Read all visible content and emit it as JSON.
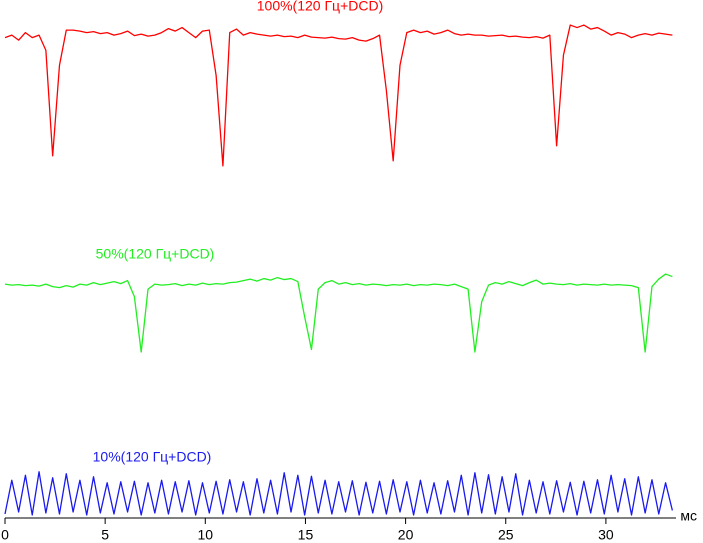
{
  "chart_data": {
    "type": "line",
    "x_label": "мс",
    "xlim": [
      0,
      33.5
    ],
    "xticks": [
      0,
      5,
      10,
      15,
      20,
      25,
      30
    ],
    "ylim": [
      0,
      100
    ],
    "x": [
      0,
      0.34,
      0.68,
      1.02,
      1.36,
      1.7,
      2.04,
      2.38,
      2.72,
      3.06,
      3.4,
      3.74,
      4.08,
      4.42,
      4.76,
      5.1,
      5.44,
      5.78,
      6.12,
      6.46,
      6.8,
      7.14,
      7.48,
      7.82,
      8.16,
      8.5,
      8.84,
      9.18,
      9.52,
      9.86,
      10.2,
      10.54,
      10.88,
      11.22,
      11.56,
      11.9,
      12.24,
      12.58,
      12.92,
      13.26,
      13.6,
      13.94,
      14.28,
      14.62,
      14.96,
      15.3,
      15.64,
      15.98,
      16.32,
      16.66,
      17,
      17.34,
      17.68,
      18.02,
      18.36,
      18.7,
      19.04,
      19.38,
      19.72,
      20.06,
      20.4,
      20.74,
      21.08,
      21.42,
      21.76,
      22.1,
      22.44,
      22.78,
      23.12,
      23.46,
      23.8,
      24.14,
      24.48,
      24.82,
      25.16,
      25.5,
      25.84,
      26.18,
      26.52,
      26.86,
      27.2,
      27.54,
      27.88,
      28.22,
      28.56,
      28.9,
      29.24,
      29.58,
      29.92,
      30.26,
      30.6,
      30.94,
      31.28,
      31.62,
      31.96,
      32.3,
      32.64,
      32.98,
      33.32
    ],
    "series": [
      {
        "name": "100%(120 Гц+DCD)",
        "color": "#ff0000",
        "values": [
          95.5,
          96,
          95,
          96.5,
          95.5,
          96,
          93,
          72,
          90,
          97,
          97,
          96.8,
          96.5,
          96.7,
          96.3,
          96.5,
          96,
          96.3,
          96.8,
          95.9,
          96.2,
          95.8,
          96,
          96.5,
          97.3,
          96.8,
          97.5,
          96.5,
          95.5,
          96.8,
          97,
          88,
          70,
          96.5,
          97.2,
          96,
          96.5,
          96.2,
          96,
          95.8,
          96,
          95.7,
          95.8,
          95.5,
          96,
          95.6,
          95.5,
          95.4,
          95.6,
          95.3,
          95.2,
          95.5,
          95,
          94.8,
          95.3,
          96,
          85,
          71,
          90,
          96.5,
          97,
          96.5,
          96.8,
          96.2,
          96.5,
          97,
          96.3,
          96,
          96.2,
          96,
          96,
          95.8,
          95.9,
          96,
          95.7,
          95.8,
          95.6,
          95.5,
          95.7,
          95.4,
          96,
          74,
          92,
          98,
          97.5,
          98,
          97.2,
          97.5,
          96.8,
          96,
          96.5,
          96.2,
          95.5,
          96,
          96.3,
          96,
          96.4,
          96.2,
          96
        ]
      },
      {
        "name": "50%(120 Гц+DCD)",
        "color": "#22ee22",
        "values": [
          46.5,
          46.3,
          46.4,
          46.2,
          46.3,
          46.1,
          46.5,
          46,
          45.8,
          46.2,
          45.9,
          46.5,
          46.3,
          46.8,
          46.4,
          46.7,
          47,
          46.6,
          47.2,
          44,
          33,
          45.5,
          46.5,
          46.3,
          46.4,
          46.6,
          46.2,
          46.5,
          46.3,
          46.7,
          46.4,
          46.6,
          46.5,
          46.8,
          46.9,
          47.2,
          47.5,
          47.1,
          47.6,
          47.3,
          47.8,
          47.4,
          47.6,
          47,
          40,
          33.5,
          45.5,
          46.8,
          47.2,
          46.5,
          46.8,
          46.4,
          46.6,
          46.3,
          46.5,
          46.4,
          46.2,
          46.4,
          46.3,
          46.5,
          46.2,
          46.4,
          46.3,
          46.5,
          46.4,
          46.2,
          46.5,
          46,
          45.5,
          33,
          43,
          46.3,
          46.8,
          46.5,
          47,
          46.6,
          46.2,
          46.8,
          47.3,
          46.5,
          46.7,
          46.5,
          46.4,
          46.6,
          46.3,
          46.5,
          46.4,
          46.3,
          46.5,
          46.3,
          46.4,
          46.3,
          46.2,
          45.8,
          33,
          46,
          47.5,
          48.5,
          48
        ]
      },
      {
        "name": "10%(120 Гц+DCD)",
        "color": "#1a1aee",
        "values": [
          0.8,
          7.5,
          1.2,
          8.5,
          0.6,
          9.2,
          1,
          8,
          0.8,
          8.8,
          1.2,
          7.5,
          0.6,
          8.2,
          1,
          7,
          0.8,
          7.2,
          1.2,
          7.3,
          0.6,
          7,
          1,
          7.5,
          0.8,
          7.2,
          1.2,
          7.4,
          0.6,
          7,
          1,
          7.3,
          0.8,
          7.6,
          1.2,
          7.2,
          0.6,
          7.8,
          1,
          7.5,
          0.8,
          9,
          1.2,
          8.5,
          0.6,
          8.3,
          1,
          7.5,
          0.8,
          7.2,
          1.2,
          7.4,
          0.6,
          7.1,
          1,
          7.3,
          0.8,
          7.6,
          1.2,
          7.2,
          0.6,
          7.5,
          1,
          7,
          0.8,
          7.4,
          1.2,
          8.5,
          0.6,
          9,
          1,
          8.6,
          0.8,
          8.2,
          1.2,
          8.8,
          0.6,
          7.5,
          1,
          7.2,
          0.8,
          7.4,
          1.2,
          7.1,
          0.6,
          7.3,
          1,
          7.6,
          0.8,
          8.5,
          1.2,
          7.8,
          0.6,
          8.2,
          1,
          7.6,
          0.8,
          7,
          1.5
        ]
      }
    ]
  }
}
